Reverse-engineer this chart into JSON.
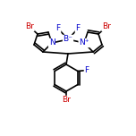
{
  "bg_color": "#ffffff",
  "atom_colors": {
    "C": "#000000",
    "N": "#0000cc",
    "B": "#0000cc",
    "F": "#0000cc",
    "Br": "#cc0000"
  },
  "bond_color": "#000000",
  "bond_width": 1.2,
  "figsize": [
    1.52,
    1.52
  ],
  "dpi": 100
}
